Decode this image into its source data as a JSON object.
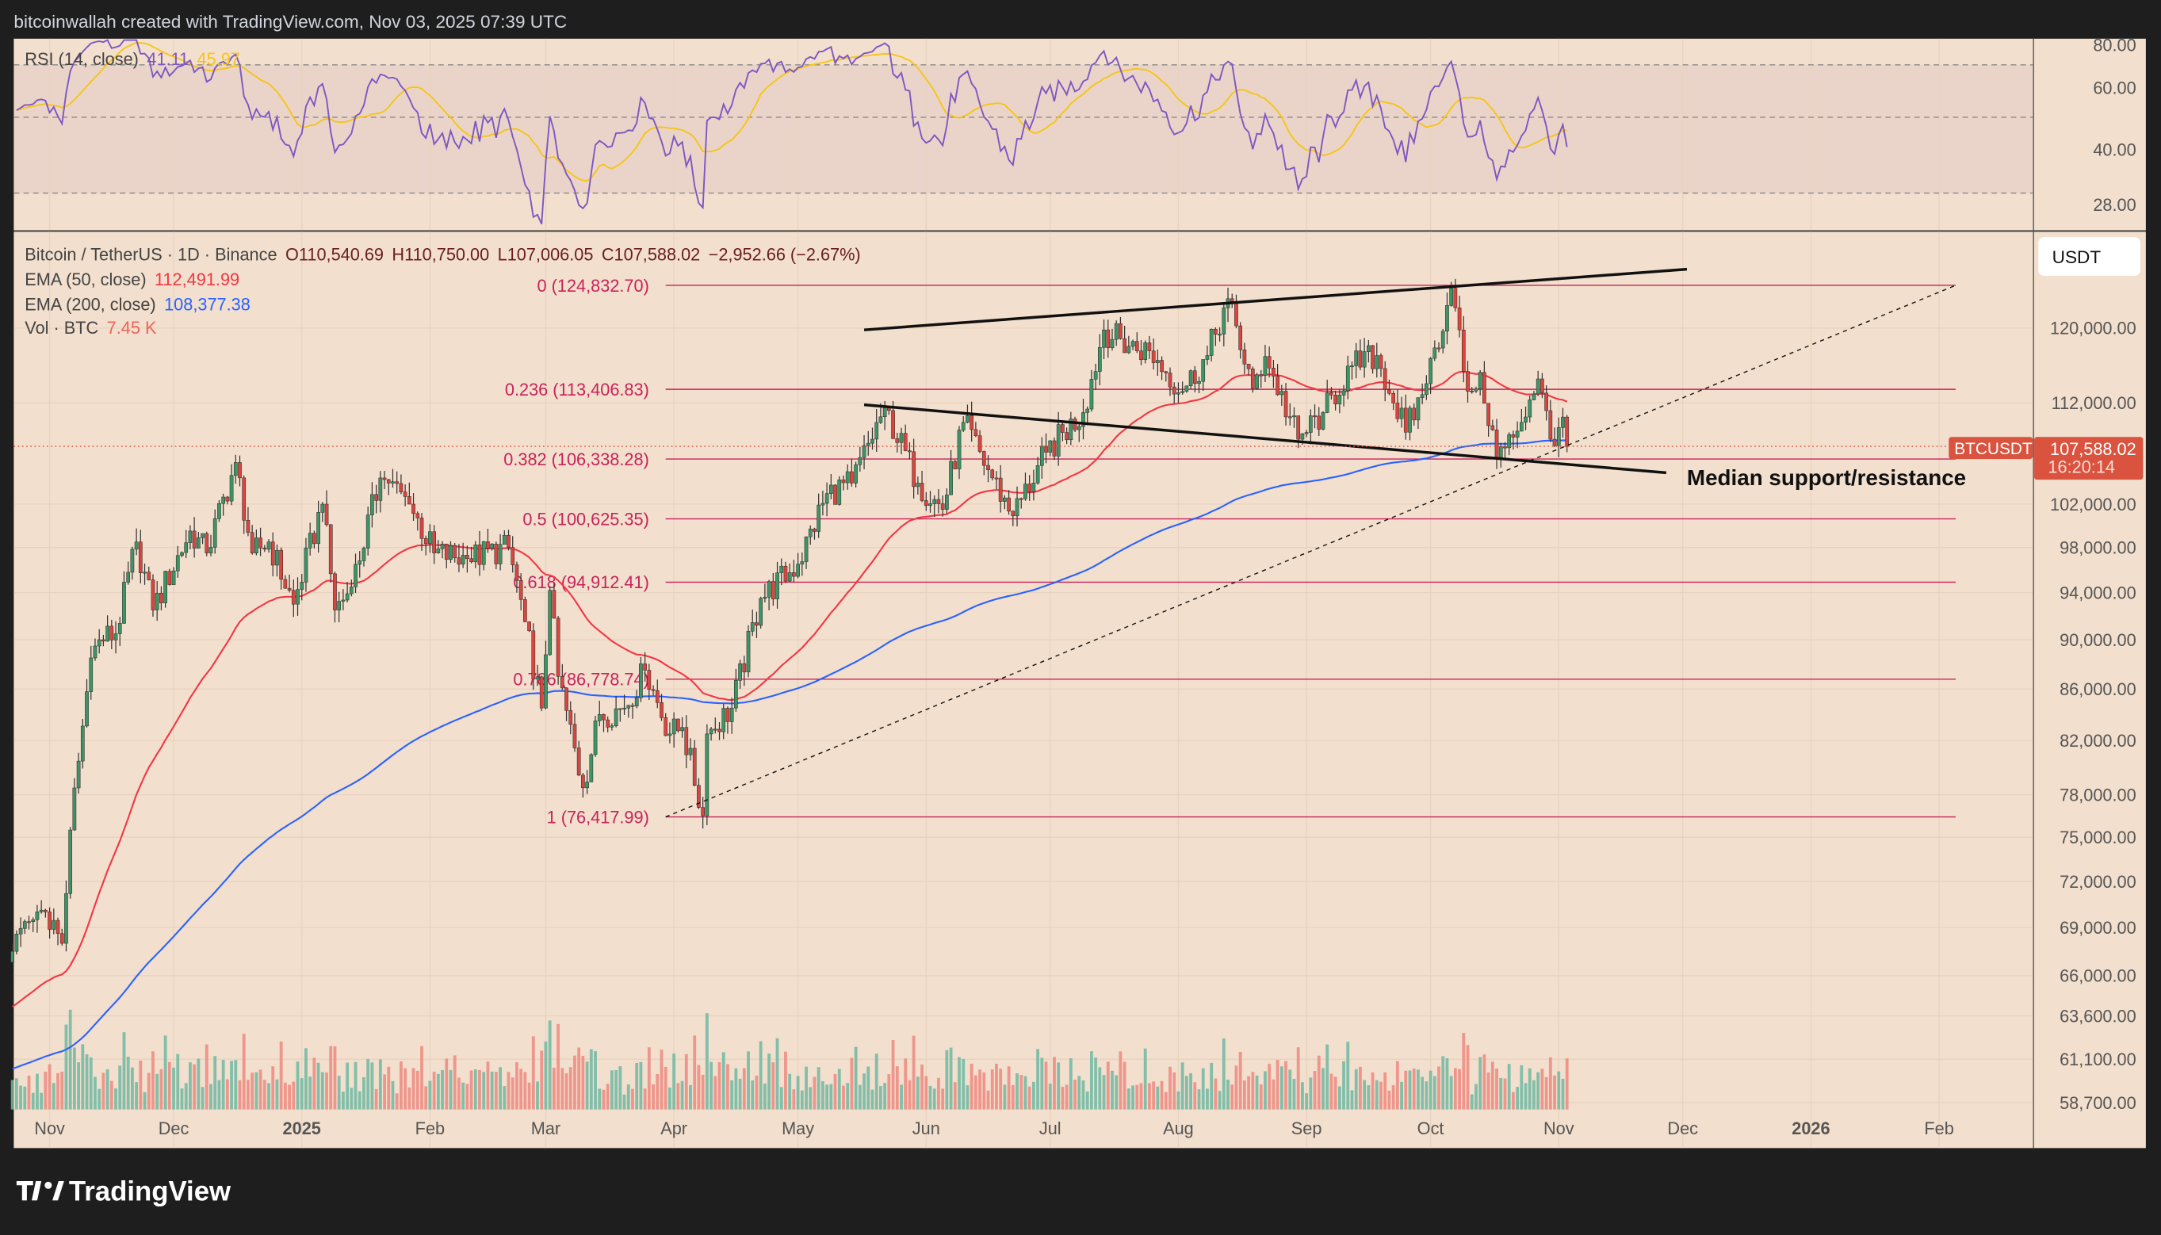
{
  "header": {
    "credit": "bitcoinwallah created with TradingView.com, Nov 03, 2025 07:39 UTC"
  },
  "brand": {
    "logo_text": "TradingView"
  },
  "legend": {
    "symbol": "Bitcoin / TetherUS · 1D · Binance",
    "open": "O110,540.69",
    "high": "H110,750.00",
    "low": "L107,006.05",
    "close": "C107,588.02",
    "change": "−2,952.66 (−2.67%)",
    "ema50_label": "EMA (50, close)",
    "ema50_value": "112,491.99",
    "ema200_label": "EMA (200, close)",
    "ema200_value": "108,377.38",
    "vol_label": "Vol · BTC",
    "vol_value": "7.45 K",
    "rsi_label": "RSI (14, close)",
    "rsi_value": "41.11",
    "rsi_ma_value": "45.97"
  },
  "price_scale": {
    "currency": "USDT",
    "ticks": [
      "120,000.00",
      "112,000.00",
      "102,000.00",
      "98,000.00",
      "94,000.00",
      "90,000.00",
      "86,000.00",
      "82,000.00",
      "78,000.00",
      "75,000.00",
      "72,000.00",
      "69,000.00",
      "66,000.00",
      "63,600.00",
      "61,100.00",
      "58,700.00"
    ],
    "last_symbol": "BTCUSDT",
    "last_price": "107,588.02",
    "countdown": "16:20:14"
  },
  "rsi_scale": {
    "ticks": [
      "80.00",
      "60.00",
      "40.00",
      "28.00"
    ]
  },
  "colors": {
    "up": "#3f9466",
    "down": "#d9463f",
    "ema50": "#f23645",
    "ema200": "#2962ff",
    "rsi": "#7e57c2",
    "rsi_ma": "#f5c518",
    "fib": "#c8235a",
    "background": "#f2dfcd",
    "last_price": "#d9533f"
  },
  "chart_data": {
    "type": "candlestick",
    "symbol": "BTCUSDT",
    "scale": "log",
    "ylim": [
      58700,
      126000
    ],
    "grid": true,
    "x_ticks": [
      {
        "date": "2024-11-01",
        "label": "Nov"
      },
      {
        "date": "2024-12-01",
        "label": "Dec"
      },
      {
        "date": "2025-01-01",
        "label": "2025"
      },
      {
        "date": "2025-02-01",
        "label": "Feb"
      },
      {
        "date": "2025-03-01",
        "label": "Mar"
      },
      {
        "date": "2025-04-01",
        "label": "Apr"
      },
      {
        "date": "2025-05-01",
        "label": "May"
      },
      {
        "date": "2025-06-01",
        "label": "Jun"
      },
      {
        "date": "2025-07-01",
        "label": "Jul"
      },
      {
        "date": "2025-08-01",
        "label": "Aug"
      },
      {
        "date": "2025-09-01",
        "label": "Sep"
      },
      {
        "date": "2025-10-01",
        "label": "Oct"
      },
      {
        "date": "2025-11-01",
        "label": "Nov"
      },
      {
        "date": "2025-12-01",
        "label": "Dec"
      },
      {
        "date": "2026-01-01",
        "label": "2026"
      },
      {
        "date": "2026-02-01",
        "label": "Feb"
      }
    ],
    "close_path": [
      [
        "2024-10-23",
        67500
      ],
      [
        "2024-10-28",
        69500
      ],
      [
        "2024-10-31",
        70000
      ],
      [
        "2024-11-04",
        68000
      ],
      [
        "2024-11-06",
        75500
      ],
      [
        "2024-11-11",
        88500
      ],
      [
        "2024-11-13",
        90000
      ],
      [
        "2024-11-17",
        90500
      ],
      [
        "2024-11-22",
        98500
      ],
      [
        "2024-11-26",
        92500
      ],
      [
        "2024-12-05",
        99500
      ],
      [
        "2024-12-09",
        97500
      ],
      [
        "2024-12-16",
        106000
      ],
      [
        "2024-12-20",
        97500
      ],
      [
        "2024-12-24",
        98500
      ],
      [
        "2024-12-30",
        93000
      ],
      [
        "2025-01-06",
        102000
      ],
      [
        "2025-01-09",
        92500
      ],
      [
        "2025-01-13",
        94500
      ],
      [
        "2025-01-20",
        104500
      ],
      [
        "2025-01-22",
        104000
      ],
      [
        "2025-01-27",
        102000
      ],
      [
        "2025-02-02",
        97500
      ],
      [
        "2025-02-10",
        97000
      ],
      [
        "2025-02-20",
        98000
      ],
      [
        "2025-02-24",
        91500
      ],
      [
        "2025-02-28",
        84500
      ],
      [
        "2025-03-02",
        94200
      ],
      [
        "2025-03-04",
        87000
      ],
      [
        "2025-03-10",
        78500
      ],
      [
        "2025-03-14",
        84000
      ],
      [
        "2025-03-20",
        84500
      ],
      [
        "2025-03-25",
        87500
      ],
      [
        "2025-03-31",
        82500
      ],
      [
        "2025-04-03",
        83000
      ],
      [
        "2025-04-08",
        76500
      ],
      [
        "2025-04-09",
        82500
      ],
      [
        "2025-04-15",
        84500
      ],
      [
        "2025-04-22",
        93500
      ],
      [
        "2025-05-01",
        96500
      ],
      [
        "2025-05-08",
        103000
      ],
      [
        "2025-05-14",
        104000
      ],
      [
        "2025-05-22",
        111500
      ],
      [
        "2025-05-30",
        104000
      ],
      [
        "2025-06-05",
        101500
      ],
      [
        "2025-06-10",
        110000
      ],
      [
        "2025-06-17",
        104500
      ],
      [
        "2025-06-22",
        100900
      ],
      [
        "2025-06-30",
        107000
      ],
      [
        "2025-07-09",
        111000
      ],
      [
        "2025-07-14",
        119800
      ],
      [
        "2025-07-20",
        118000
      ],
      [
        "2025-07-25",
        117500
      ],
      [
        "2025-08-02",
        113200
      ],
      [
        "2025-08-08",
        117000
      ],
      [
        "2025-08-13",
        123300
      ],
      [
        "2025-08-19",
        113500
      ],
      [
        "2025-08-22",
        116900
      ],
      [
        "2025-08-30",
        108300
      ],
      [
        "2025-09-05",
        111000
      ],
      [
        "2025-09-12",
        115900
      ],
      [
        "2025-09-18",
        117000
      ],
      [
        "2025-09-25",
        109000
      ],
      [
        "2025-09-30",
        114000
      ],
      [
        "2025-10-06",
        124500
      ],
      [
        "2025-10-10",
        113200
      ],
      [
        "2025-10-13",
        115200
      ],
      [
        "2025-10-17",
        106500
      ],
      [
        "2025-10-21",
        108500
      ],
      [
        "2025-10-27",
        114500
      ],
      [
        "2025-10-30",
        108300
      ],
      [
        "2025-11-02",
        110540.69
      ]
    ],
    "last_candle": {
      "date": "2025-11-03",
      "open": 110540.69,
      "high": 110750.0,
      "low": 107006.05,
      "close": 107588.02
    },
    "fib_levels": [
      {
        "ratio": 0,
        "price": 124832.7,
        "label": "0 (124,832.70)"
      },
      {
        "ratio": 0.236,
        "price": 113406.83,
        "label": "0.236 (113,406.83)"
      },
      {
        "ratio": 0.382,
        "price": 106338.28,
        "label": "0.382 (106,338.28)"
      },
      {
        "ratio": 0.5,
        "price": 100625.35,
        "label": "0.5 (100,625.35)"
      },
      {
        "ratio": 0.618,
        "price": 94912.41,
        "label": "0.618 (94,912.41)"
      },
      {
        "ratio": 0.786,
        "price": 86778.74,
        "label": "0.786 (86,778.74)"
      },
      {
        "ratio": 1,
        "price": 76417.99,
        "label": "1 (76,417.99)"
      }
    ],
    "fib_range": [
      "2025-03-30",
      "2026-02-05"
    ],
    "trendlines": [
      {
        "name": "upper",
        "from": [
          "2025-05-17",
          119800
        ],
        "to": [
          "2025-12-02",
          126700
        ],
        "style": "solid"
      },
      {
        "name": "median",
        "from": [
          "2025-05-17",
          111800
        ],
        "to": [
          "2025-11-27",
          105000
        ],
        "style": "solid"
      },
      {
        "name": "rising-support",
        "from": [
          "2025-03-30",
          76418
        ],
        "to": [
          "2026-02-05",
          124833
        ],
        "style": "dashed"
      }
    ],
    "annotation": "Median support/resistance",
    "rsi": {
      "period": 14,
      "levels": [
        70,
        50,
        30
      ]
    }
  }
}
